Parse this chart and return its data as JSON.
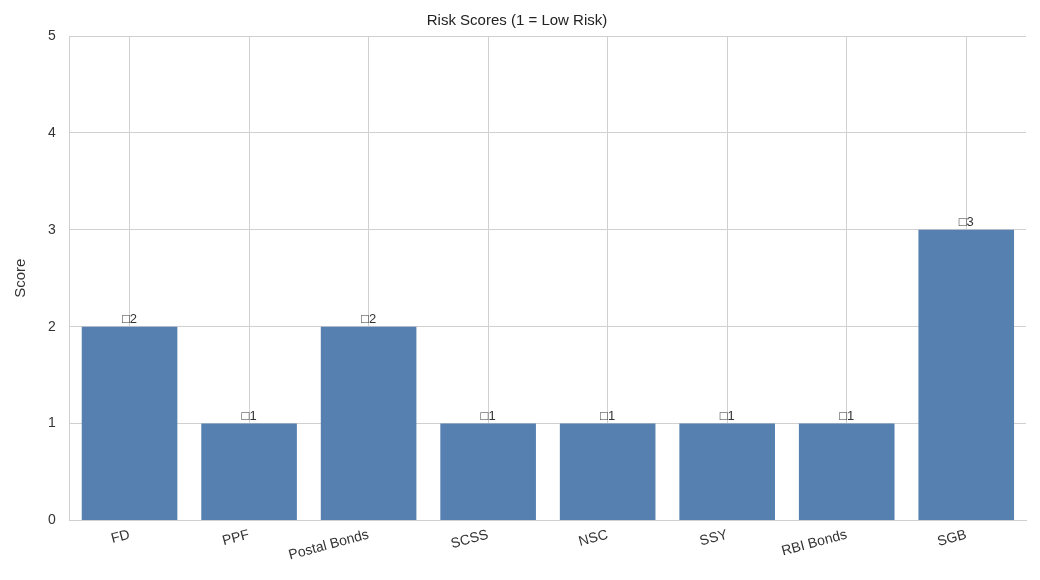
{
  "chart_data": {
    "type": "bar",
    "title": "Risk Scores (1 = Low Risk)",
    "ylabel": "Score",
    "categories": [
      "FD",
      "PPF",
      "Postal Bonds",
      "SCSS",
      "NSC",
      "SSY",
      "RBI Bonds",
      "SGB"
    ],
    "values": [
      2,
      1,
      2,
      1,
      1,
      1,
      1,
      3
    ],
    "value_labels": [
      "□2",
      "□1",
      "□2",
      "□1",
      "□1",
      "□1",
      "□1",
      "□3"
    ],
    "color": "#5580b0",
    "ylim": [
      0,
      5
    ],
    "yticks": [
      0,
      1,
      2,
      3,
      4,
      5
    ],
    "grid": true,
    "legend": false
  }
}
